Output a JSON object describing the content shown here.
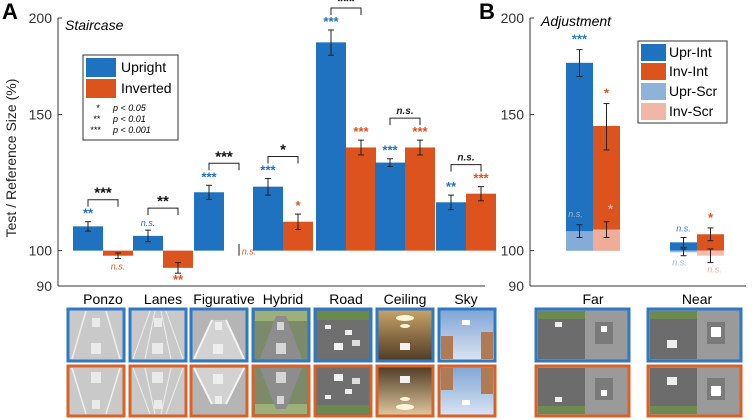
{
  "figure": {
    "panel_a_letter": "A",
    "panel_b_letter": "B",
    "colors": {
      "upright": "#1e72c0",
      "inverted": "#dc531e",
      "upright_scr": "#8fb3d8",
      "inverted_scr": "#f0b7a6",
      "sig_black": "#111111"
    }
  },
  "chart_data": [
    {
      "type": "bar",
      "panel": "A",
      "title": "Staircase",
      "ylabel": "Test / Reference Size (%)",
      "yscale": "log",
      "ylim": [
        90,
        200
      ],
      "yticks": [
        90,
        100,
        150,
        200
      ],
      "categories": [
        "Ponzo",
        "Lanes",
        "Figurative",
        "Hybrid",
        "Road",
        "Ceiling",
        "Sky"
      ],
      "series": [
        {
          "name": "Upright",
          "values": [
            107.5,
            104.5,
            119,
            121,
            186,
            130,
            115.5
          ],
          "err": [
            1.5,
            1.8,
            2.5,
            3,
            7,
            1.5,
            2.5
          ]
        },
        {
          "name": "Inverted",
          "values": [
            98.5,
            95,
            null,
            109,
            136,
            136,
            118.5
          ],
          "err": [
            0.8,
            1.5,
            null,
            2.5,
            3,
            3,
            2.5
          ]
        }
      ],
      "upright_sig": [
        "**",
        "n.s.",
        "***",
        "***",
        "***",
        "***",
        "**"
      ],
      "inverted_sig": [
        "n.s.",
        "**",
        "n.s.",
        "*",
        "***",
        "***",
        "***"
      ],
      "comparison_sig": [
        "***",
        "**",
        "***",
        "*",
        "***",
        "n.s.",
        "n.s."
      ],
      "significance_key": [
        "*",
        "p < 0.05",
        "**",
        "p < 0.01",
        "***",
        "p < 0.001"
      ],
      "legend": [
        "Upright",
        "Inverted"
      ]
    },
    {
      "type": "bar",
      "panel": "B",
      "title": "Adjustment",
      "yscale": "log",
      "ylim": [
        90,
        200
      ],
      "yticks": [
        90,
        100,
        150,
        200
      ],
      "categories": [
        "Far",
        "Near"
      ],
      "series": [
        {
          "name": "Upr-Int",
          "values": [
            175,
            102.5
          ],
          "err": [
            7,
            1.5
          ]
        },
        {
          "name": "Inv-Int",
          "values": [
            145,
            105
          ],
          "err": [
            10,
            2
          ]
        },
        {
          "name": "Upr-Scr",
          "values": [
            106,
            99.5
          ],
          "err": [
            2,
            1
          ]
        },
        {
          "name": "Inv-Scr",
          "values": [
            106.5,
            98.5
          ],
          "err": [
            2.5,
            2
          ]
        }
      ],
      "sig": [
        [
          "***",
          "*",
          "n.s.",
          "*"
        ],
        [
          "n.s.",
          "*",
          "n.s.",
          "n.s."
        ]
      ],
      "legend": [
        "Upr-Int",
        "Inv-Int",
        "Upr-Scr",
        "Inv-Scr"
      ]
    }
  ]
}
